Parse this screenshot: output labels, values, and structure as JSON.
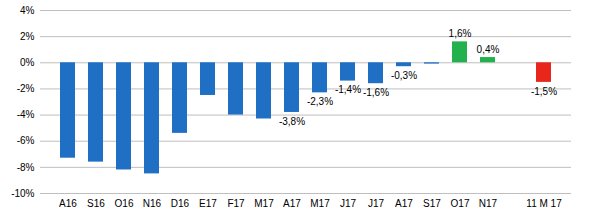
{
  "chart_data": {
    "type": "bar",
    "categories": [
      "A16",
      "S16",
      "O16",
      "N16",
      "D16",
      "E17",
      "F17",
      "M17",
      "A17",
      "M17",
      "J17",
      "J17",
      "A17",
      "S17",
      "O17",
      "N17",
      null,
      "11 M 17"
    ],
    "values": [
      -7.3,
      -7.6,
      -8.2,
      -8.5,
      -5.4,
      -2.5,
      -4.0,
      -4.3,
      -3.8,
      -2.3,
      -1.4,
      -1.6,
      -0.3,
      -0.1,
      1.6,
      0.4,
      null,
      -1.5
    ],
    "value_labels": [
      null,
      null,
      null,
      null,
      null,
      null,
      null,
      null,
      "-3,8%",
      "-2,3%",
      "-1,4%",
      "-1,6%",
      "-0,3%",
      null,
      "1,6%",
      "0,4%",
      null,
      "-1,5%"
    ],
    "colors": [
      "#1f6fc5",
      "#1f6fc5",
      "#1f6fc5",
      "#1f6fc5",
      "#1f6fc5",
      "#1f6fc5",
      "#1f6fc5",
      "#1f6fc5",
      "#1f6fc5",
      "#1f6fc5",
      "#1f6fc5",
      "#1f6fc5",
      "#1f6fc5",
      "#1f6fc5",
      "#22b14c",
      "#22b14c",
      null,
      "#e8261c"
    ],
    "ylim": [
      -10,
      4
    ],
    "yticks": [
      {
        "value": -10,
        "label": "-10%"
      },
      {
        "value": -8,
        "label": "-8%"
      },
      {
        "value": -6,
        "label": "-6%"
      },
      {
        "value": -4,
        "label": "-4%"
      },
      {
        "value": -2,
        "label": "-2%"
      },
      {
        "value": 0,
        "label": "0%"
      },
      {
        "value": 2,
        "label": "2%"
      },
      {
        "value": 4,
        "label": "4%"
      }
    ],
    "grid": true,
    "data_labels": true
  }
}
